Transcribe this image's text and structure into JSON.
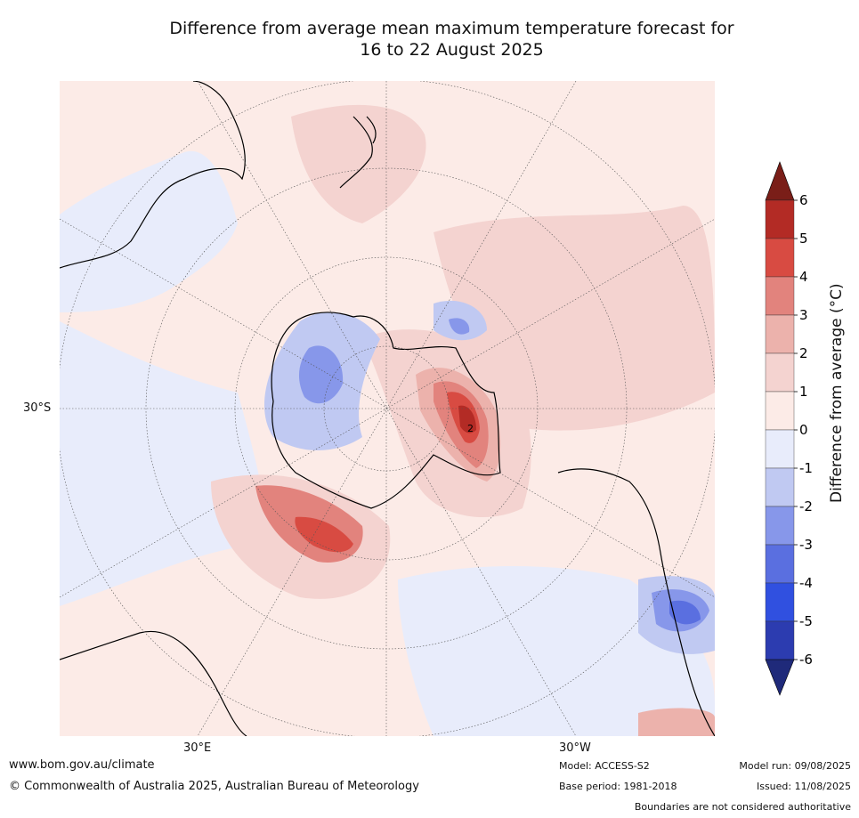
{
  "title": {
    "line1": "Difference from average mean maximum temperature forecast for",
    "line2": "16 to 22 August 2025"
  },
  "map": {
    "lat_label": "30°S",
    "lon_labels": [
      "30°E",
      "30°W"
    ],
    "contour_label": "2",
    "palette": {
      "neg6": "#1f2a7a",
      "neg5": "#2c3cb0",
      "neg4": "#3050e0",
      "neg3": "#5a6fe0",
      "neg2": "#8797ea",
      "neg1": "#c0c9f2",
      "zero_neg": "#e8ecfb",
      "zero_pos": "#fcebe7",
      "pos1": "#f4d3d0",
      "pos2": "#ecb2ac",
      "pos3": "#e2837d",
      "pos4": "#d84b42",
      "pos5": "#b32b25",
      "pos6": "#7a1e18"
    }
  },
  "colorbar": {
    "label": "Difference from average (°C)",
    "ticks": [
      "6",
      "5",
      "4",
      "3",
      "2",
      "1",
      "0",
      "-1",
      "-2",
      "-3",
      "-4",
      "-5",
      "-6"
    ]
  },
  "footer": {
    "url": "www.bom.gov.au/climate",
    "copyright": "© Commonwealth of Australia 2025, Australian Bureau of Meteorology",
    "model": "Model: ACCESS-S2",
    "base_period": "Base period: 1981-2018",
    "model_run": "Model run: 09/08/2025",
    "issued": "Issued: 11/08/2025",
    "disclaimer": "Boundaries are not considered authoritative"
  }
}
